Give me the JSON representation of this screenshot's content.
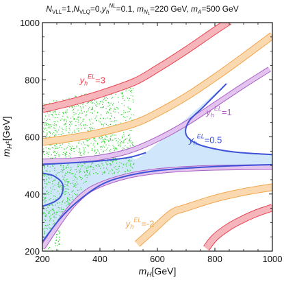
{
  "chart_data": {
    "type": "line",
    "title": {
      "N1": "N",
      "s1": "VLL",
      "t1": "=1,",
      "N2": "N",
      "s2": "VLQ",
      "t2": "=0,",
      "y": "y",
      "ysub": "h",
      "ysup": "NL",
      "t3": "=0.1, ",
      "m1": "m",
      "m1sub": "N",
      "m1subsub": "1",
      "t4": "=220 GeV, ",
      "m2": "m",
      "m2sub": "A",
      "t5": "=500 GeV"
    },
    "xlabel": {
      "main": "m",
      "sub": "H",
      "unit": "[GeV]"
    },
    "ylabel": {
      "main": "m",
      "sub": "H",
      "subsup": "±",
      "unit": "[GeV]"
    },
    "xlim": [
      200,
      1000
    ],
    "ylim": [
      200,
      1000
    ],
    "xticks": [
      "200",
      "400",
      "600",
      "800",
      "1000"
    ],
    "yticks": [
      "200",
      "400",
      "600",
      "800",
      "1000"
    ],
    "colors": {
      "red": "#e8424f",
      "red_fill": "#f5b5bb",
      "orange": "#f2a44b",
      "orange_fill": "#fbd9b0",
      "purple": "#a95ec4",
      "purple_fill": "#e2c4ef",
      "blue": "#3e52d8",
      "blue_fill": "#cfe6fb",
      "scatter": "#2fd62f"
    },
    "series": [
      {
        "sym": "y",
        "sub": "h",
        "sup": "EL",
        "value": "=3",
        "color": "#e8424f",
        "upper": [
          [
            200,
            697
          ],
          [
            300,
            721
          ],
          [
            400,
            750
          ],
          [
            520,
            793
          ],
          [
            600,
            839
          ],
          [
            700,
            903
          ],
          [
            800,
            972
          ],
          [
            850,
            1005
          ]
        ],
        "lower": [
          [
            770,
            210
          ],
          [
            800,
            248
          ],
          [
            850,
            286
          ],
          [
            900,
            313
          ],
          [
            950,
            335
          ],
          [
            1000,
            352
          ]
        ]
      },
      {
        "sym": "y",
        "sub": "h",
        "sup": "EL",
        "value": "=2",
        "color": "#f2a44b",
        "upper": [
          [
            200,
            582
          ],
          [
            300,
            596
          ],
          [
            400,
            615
          ],
          [
            520,
            647
          ],
          [
            600,
            684
          ],
          [
            700,
            741
          ],
          [
            800,
            808
          ],
          [
            900,
            880
          ],
          [
            1000,
            955
          ]
        ],
        "lower": [
          [
            530,
            225
          ],
          [
            580,
            270
          ],
          [
            650,
            333
          ],
          [
            700,
            352
          ],
          [
            800,
            384
          ],
          [
            900,
            407
          ],
          [
            1000,
            424
          ]
        ]
      },
      {
        "sym": "y",
        "sub": "h",
        "sup": "EL",
        "value": "=1",
        "color": "#a95ec4",
        "upper": [
          [
            200,
            514
          ],
          [
            300,
            517
          ],
          [
            400,
            528
          ],
          [
            500,
            550
          ],
          [
            600,
            592
          ],
          [
            700,
            647
          ],
          [
            800,
            713
          ],
          [
            900,
            780
          ],
          [
            990,
            837
          ]
        ],
        "lower": [
          [
            200,
            211
          ],
          [
            280,
            330
          ],
          [
            340,
            396
          ],
          [
            400,
            432
          ],
          [
            500,
            464
          ],
          [
            600,
            480
          ],
          [
            700,
            488
          ],
          [
            800,
            492
          ],
          [
            1000,
            495
          ]
        ]
      },
      {
        "sym": "y",
        "sub": "h",
        "sup": "EL",
        "value": "=0.5",
        "color": "#3e52d8",
        "upper": [
          [
            200,
            504
          ],
          [
            300,
            509
          ],
          [
            400,
            516
          ],
          [
            500,
            528
          ],
          [
            560,
            545
          ]
        ],
        "lower": [
          [
            200,
            233
          ],
          [
            260,
            312
          ],
          [
            320,
            372
          ],
          [
            400,
            430
          ],
          [
            480,
            460
          ],
          [
            600,
            482
          ],
          [
            800,
            496
          ],
          [
            1000,
            503
          ]
        ],
        "right": [
          [
            840,
            786
          ],
          [
            760,
            705
          ],
          [
            710,
            655
          ],
          [
            700,
            608
          ],
          [
            740,
            575
          ],
          [
            820,
            554
          ],
          [
            900,
            544
          ],
          [
            1000,
            538
          ]
        ],
        "left": [
          [
            200,
            473
          ],
          [
            240,
            463
          ],
          [
            270,
            435
          ],
          [
            266,
            395
          ],
          [
            240,
            372
          ],
          [
            200,
            357
          ]
        ]
      }
    ],
    "scatter": {
      "name": "green points",
      "x_range": [
        200,
        518
      ],
      "y_range": [
        200,
        790
      ]
    },
    "annotations": [
      {
        "value": "=3",
        "x": 330,
        "y": 787
      },
      {
        "value": "=1",
        "x": 770,
        "y": 676
      },
      {
        "value": "=0.5",
        "x": 710,
        "y": 578
      },
      {
        "value": "=-2",
        "x": 490,
        "y": 285
      }
    ]
  }
}
